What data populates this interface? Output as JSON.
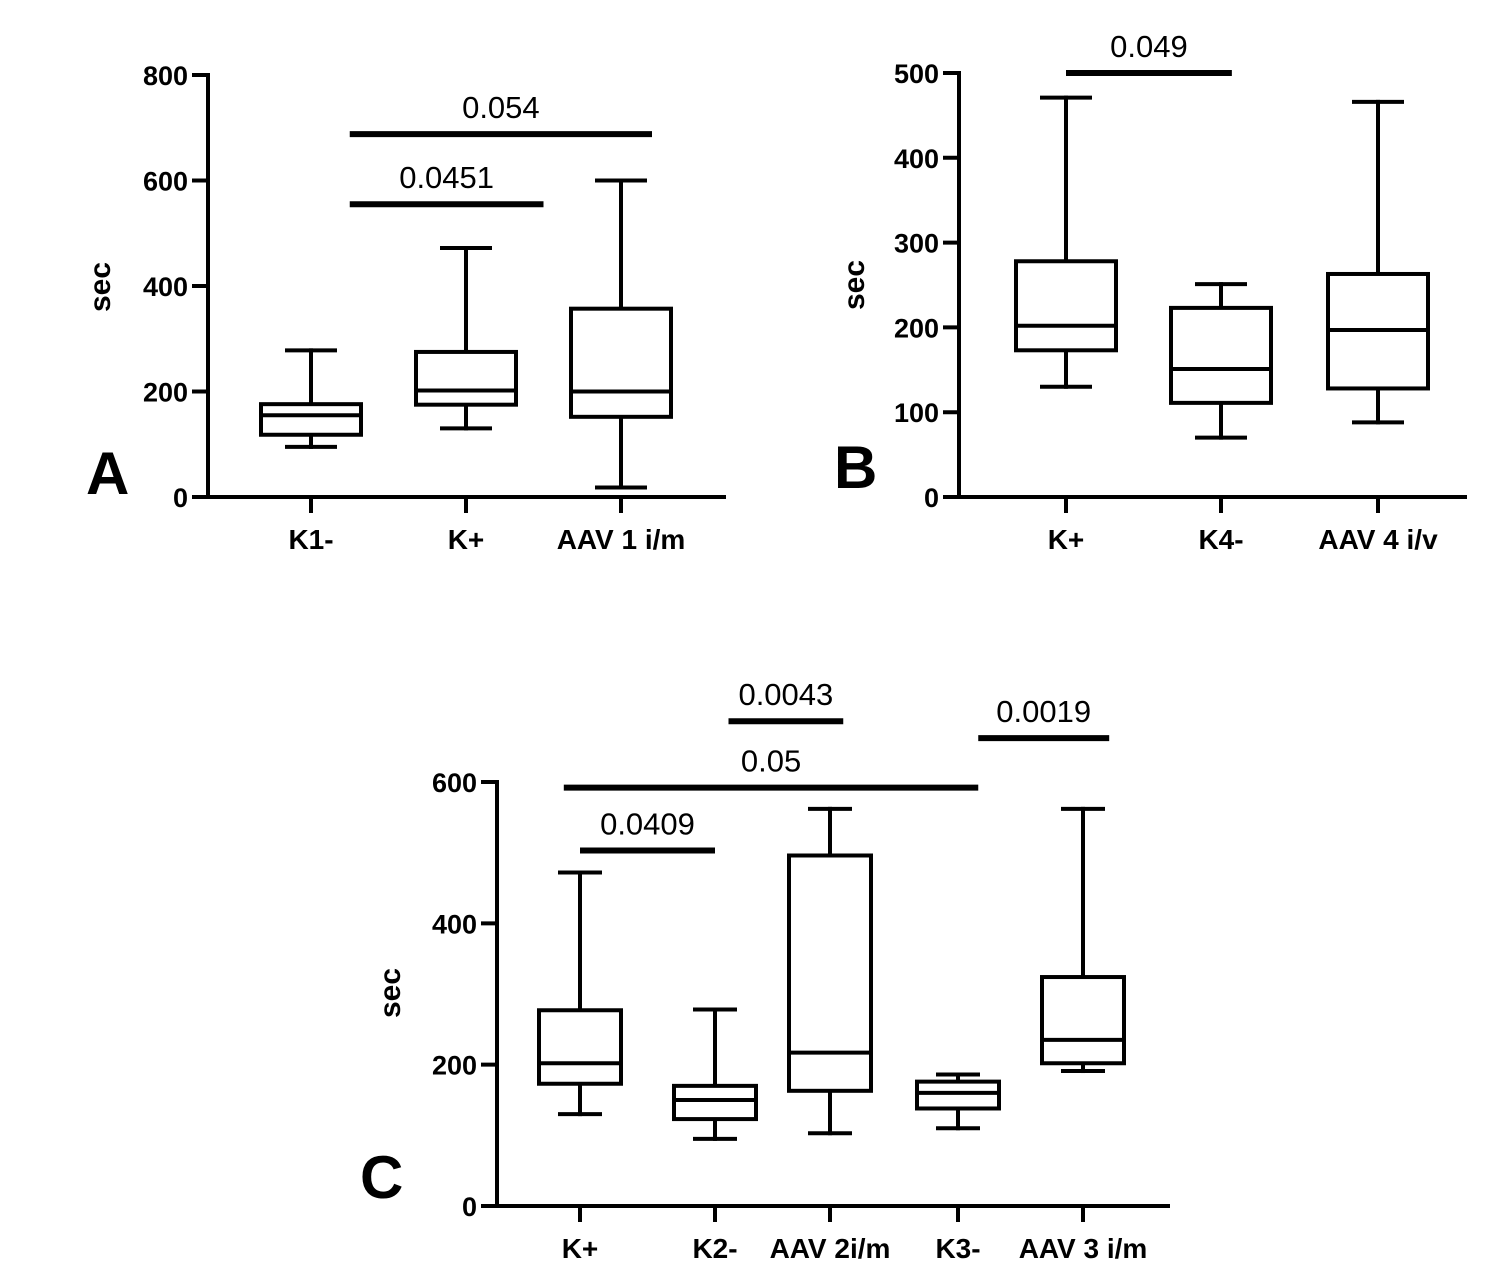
{
  "chart_data": [
    {
      "type": "box",
      "panel_label": "A",
      "ylabel": "sec",
      "ylim": [
        0,
        800
      ],
      "yticks": [
        0,
        200,
        400,
        600,
        800
      ],
      "categories": [
        "K1-",
        "K+",
        "AAV 1 i/m"
      ],
      "boxes": [
        {
          "min": 95,
          "q1": 118,
          "median": 155,
          "q3": 176,
          "max": 278
        },
        {
          "min": 130,
          "q1": 175,
          "median": 202,
          "q3": 275,
          "max": 472
        },
        {
          "min": 18,
          "q1": 152,
          "median": 200,
          "q3": 357,
          "max": 600
        }
      ],
      "annotations": [
        {
          "from": 0,
          "to": 1,
          "label": "0.0451",
          "y": 555,
          "x_start": 0.25,
          "x_end": 1.5
        },
        {
          "from": 0,
          "to": 2,
          "label": "0.054",
          "y": 688,
          "x_start": 0.25,
          "x_end": 2.2
        }
      ]
    },
    {
      "type": "box",
      "panel_label": "B",
      "ylabel": "sec",
      "ylim": [
        0,
        500
      ],
      "yticks": [
        0,
        100,
        200,
        300,
        400,
        500
      ],
      "categories": [
        "K+",
        "K4-",
        "AAV 4 i/v"
      ],
      "boxes": [
        {
          "min": 130,
          "q1": 173,
          "median": 202,
          "q3": 278,
          "max": 471
        },
        {
          "min": 70,
          "q1": 111,
          "median": 151,
          "q3": 223,
          "max": 251
        },
        {
          "min": 88,
          "q1": 128,
          "median": 197,
          "q3": 263,
          "max": 466
        }
      ],
      "annotations": [
        {
          "from": 0,
          "to": 1,
          "label": "0.049",
          "y": 500,
          "x_start": 0.0,
          "x_end": 1.07
        }
      ]
    },
    {
      "type": "box",
      "panel_label": "C",
      "ylabel": "sec",
      "ylim": [
        0,
        600
      ],
      "yticks": [
        0,
        200,
        400,
        600
      ],
      "categories": [
        "K+",
        "K2-",
        "AAV 2i/m",
        "K3-",
        "AAV 3 i/m"
      ],
      "boxes": [
        {
          "min": 130,
          "q1": 173,
          "median": 202,
          "q3": 277,
          "max": 472
        },
        {
          "min": 95,
          "q1": 123,
          "median": 150,
          "q3": 170,
          "max": 278
        },
        {
          "min": 103,
          "q1": 163,
          "median": 217,
          "q3": 496,
          "max": 562
        },
        {
          "min": 110,
          "q1": 138,
          "median": 160,
          "q3": 176,
          "max": 186
        },
        {
          "min": 191,
          "q1": 202,
          "median": 235,
          "q3": 324,
          "max": 562
        }
      ],
      "annotations": [
        {
          "from": 0,
          "to": 1,
          "label": "0.0409",
          "y": 503,
          "x_start": 0.0,
          "x_end": 1.0
        },
        {
          "from": 0,
          "to": 3,
          "label": "0.05",
          "y": 592,
          "x_start": -0.12,
          "x_end": 2.95
        },
        {
          "from": 1,
          "to": 2,
          "label": "0.0043",
          "y": 686,
          "x_start": 1.1,
          "x_end": 1.95
        },
        {
          "from": 3,
          "to": 4,
          "label": "0.0019",
          "y": 662,
          "x_start": 2.95,
          "x_end": 3.92
        }
      ]
    }
  ]
}
